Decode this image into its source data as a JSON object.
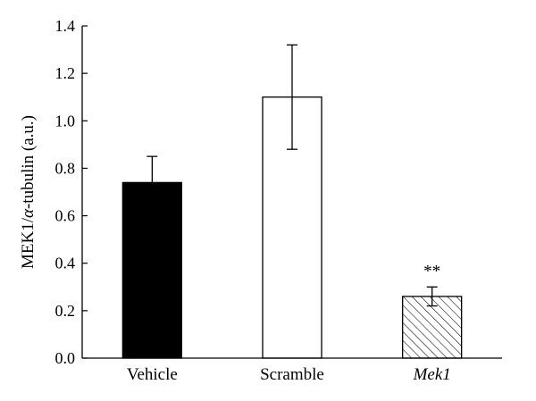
{
  "chart_data": {
    "type": "bar",
    "ylabel_parts": [
      "MEK1/",
      "α",
      "-tubulin (a.u.)"
    ],
    "xlabel": "",
    "ylim": [
      0,
      1.4
    ],
    "yticks": [
      "0.0",
      "0.2",
      "0.4",
      "0.6",
      "0.8",
      "1.0",
      "1.2",
      "1.4"
    ],
    "categories": [
      "Vehicle",
      "Scramble",
      "Mek1"
    ],
    "category_italic": [
      false,
      false,
      true
    ],
    "values": [
      0.74,
      1.1,
      0.26
    ],
    "errors": [
      0.11,
      0.22,
      0.04
    ],
    "fills": [
      "solid-black",
      "white",
      "hatched"
    ],
    "annotations": [
      "",
      "",
      "**"
    ],
    "grid": false,
    "colors": {
      "bar_black": "#000000",
      "bar_white": "#ffffff",
      "stroke": "#000000"
    }
  }
}
